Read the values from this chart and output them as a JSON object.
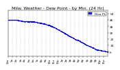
{
  "title": "Milw. Weather - Dew Point - by Min. (24 Hr)",
  "legend_label": "Dew Pt.",
  "bg_color": "#ffffff",
  "plot_bg": "#ffffff",
  "dot_color": "#0000cc",
  "legend_box_color": "#2222ff",
  "ylim": [
    0,
    58
  ],
  "yticks": [
    6,
    14,
    22,
    30,
    38,
    46,
    54
  ],
  "x_values": [
    0,
    60,
    120,
    180,
    240,
    300,
    360,
    420,
    480,
    540,
    600,
    660,
    720,
    780,
    840,
    900,
    960,
    1020,
    1080,
    1140,
    1200,
    1260,
    1320,
    1380,
    1439
  ],
  "y_values": [
    46,
    46,
    46,
    45,
    44,
    44,
    44,
    43,
    42,
    41,
    39,
    37,
    34,
    31,
    28,
    25,
    22,
    20,
    17,
    14,
    12,
    9,
    8,
    7,
    6
  ],
  "title_fontsize": 4.5,
  "tick_fontsize": 3.2,
  "grid_color": "#bbbbbb",
  "grid_style": "--",
  "dot_size": 0.8,
  "border_color": "#000000"
}
